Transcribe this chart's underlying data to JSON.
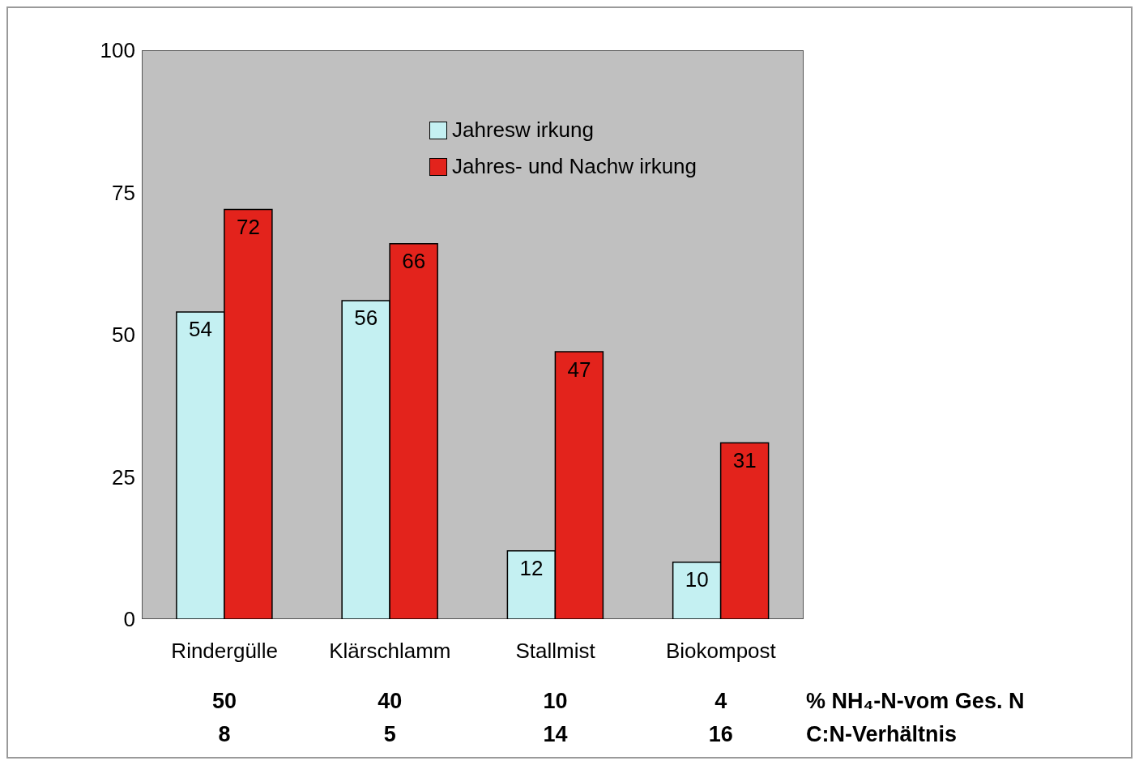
{
  "chart_data": {
    "type": "bar",
    "categories": [
      "Rindergülle",
      "Klärschlamm",
      "Stallmist",
      "Biokompost"
    ],
    "series": [
      {
        "name": "Jahresw irkung",
        "color": "#c4f0f2",
        "values": [
          54,
          56,
          12,
          10
        ]
      },
      {
        "name": "Jahres- und Nachw irkung",
        "color": "#e3231c",
        "values": [
          72,
          66,
          47,
          31
        ]
      }
    ],
    "ylim": [
      0,
      100
    ],
    "yticks": [
      0,
      25,
      50,
      75,
      100
    ],
    "grid": false,
    "legend": "top",
    "data_labels": true,
    "annotations": [
      "% NH₄-N-vom Ges. N",
      "50",
      "40",
      "10",
      "4",
      "C:N-Verhältnis",
      "8",
      "5",
      "14",
      "16"
    ]
  }
}
